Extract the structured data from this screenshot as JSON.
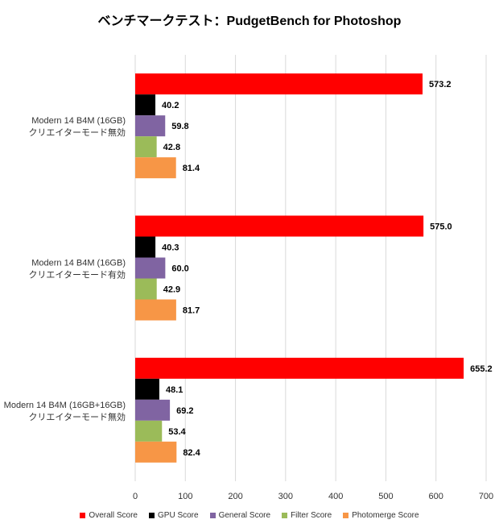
{
  "chart_data": {
    "type": "bar",
    "orientation": "horizontal",
    "title": "ベンチマークテスト：PudgetBench for Photoshop",
    "categories": [
      {
        "line1": "Modern 14 B4M (16GB)",
        "line2": "クリエイターモード無効"
      },
      {
        "line1": "Modern 14 B4M (16GB)",
        "line2": "クリエイターモード有効"
      },
      {
        "line1": "Modern 14 B4M (16GB+16GB)",
        "line2": "クリエイターモード無効"
      }
    ],
    "series": [
      {
        "name": "Overall Score",
        "color": "#ff0000",
        "values": [
          573.2,
          575.0,
          655.2
        ],
        "labels": [
          "573.2",
          "575.0",
          "655.2"
        ]
      },
      {
        "name": "GPU Score",
        "color": "#000000",
        "values": [
          40.2,
          40.3,
          48.1
        ],
        "labels": [
          "40.2",
          "40.3",
          "48.1"
        ]
      },
      {
        "name": "General Score",
        "color": "#8064a2",
        "values": [
          59.8,
          60.0,
          69.2
        ],
        "labels": [
          "59.8",
          "60.0",
          "69.2"
        ]
      },
      {
        "name": "Filter Score",
        "color": "#9bbb59",
        "values": [
          42.8,
          42.9,
          53.4
        ],
        "labels": [
          "42.8",
          "42.9",
          "53.4"
        ]
      },
      {
        "name": "Photomerge Score",
        "color": "#f79646",
        "values": [
          81.4,
          81.7,
          82.4
        ],
        "labels": [
          "81.4",
          "81.7",
          "82.4"
        ]
      }
    ],
    "xlim": [
      0,
      700
    ],
    "xticks": [
      "0",
      "100",
      "200",
      "300",
      "400",
      "500",
      "600",
      "700"
    ],
    "grid": true,
    "legend_position": "bottom"
  }
}
